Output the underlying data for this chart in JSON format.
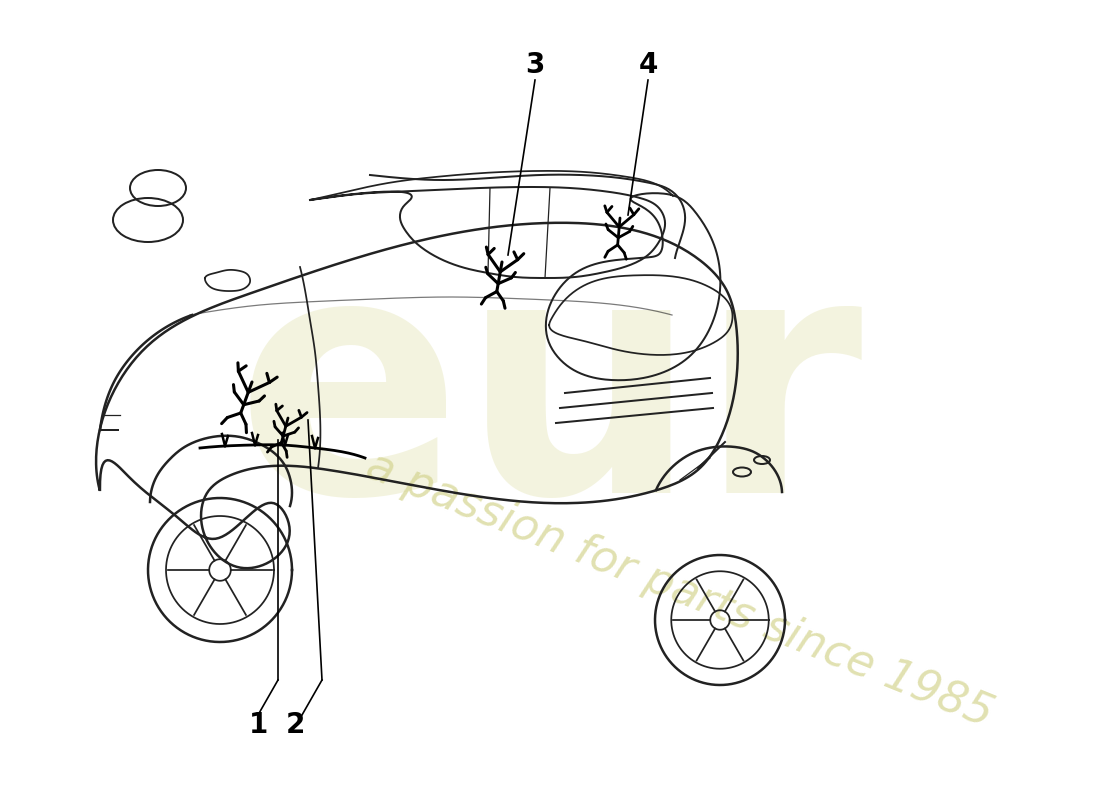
{
  "title": "",
  "background_color": "#ffffff",
  "car_outline_color": "#222222",
  "harness_color": "#000000",
  "label_color": "#000000",
  "watermark_text1": "eur",
  "watermark_text2": "a passion for parts since 1985",
  "watermark_color": "#e8e8c0",
  "part_labels": [
    "1",
    "2",
    "3",
    "4"
  ],
  "figsize": [
    11.0,
    8.0
  ],
  "dpi": 100
}
